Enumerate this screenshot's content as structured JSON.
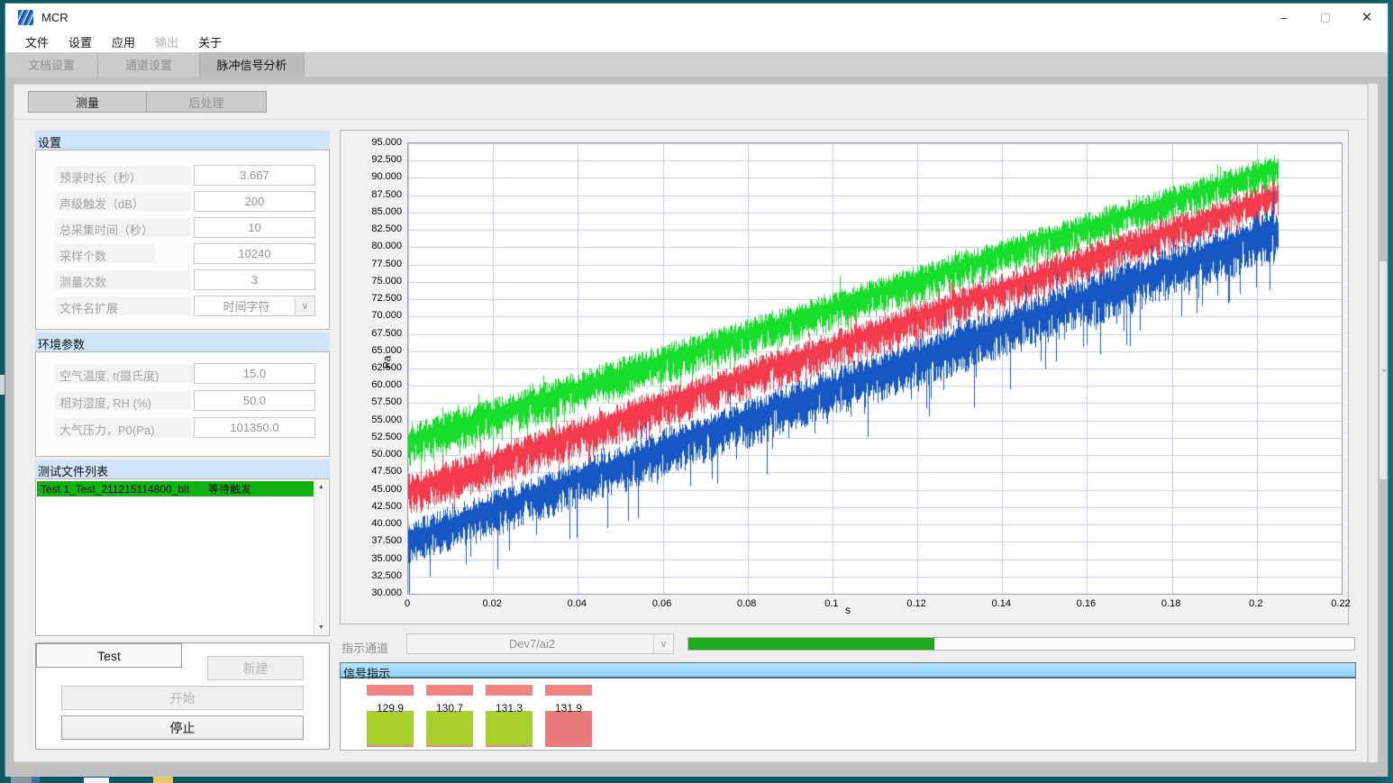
{
  "window": {
    "title": "MCR"
  },
  "window_controls": {
    "minimize": "–",
    "maximize": "▢",
    "close": "✕"
  },
  "menu": {
    "items": [
      {
        "label": "文件",
        "enabled": true
      },
      {
        "label": "设置",
        "enabled": true
      },
      {
        "label": "应用",
        "enabled": true
      },
      {
        "label": "输出",
        "enabled": false
      },
      {
        "label": "关于",
        "enabled": true
      }
    ]
  },
  "tabs": [
    {
      "label": "文档设置",
      "active": false
    },
    {
      "label": "通道设置",
      "active": false
    },
    {
      "label": "脉冲信号分析",
      "active": true
    }
  ],
  "subtabs": [
    {
      "label": "测量",
      "active": true
    },
    {
      "label": "后处理",
      "active": false
    }
  ],
  "settings": {
    "header": "设置",
    "fields": [
      {
        "label": "预录时长（秒）",
        "value": "3.667",
        "type": "input"
      },
      {
        "label": "声级触发（dB）",
        "value": "200",
        "type": "input"
      },
      {
        "label": "总采集时间（秒）",
        "value": "10",
        "type": "input"
      },
      {
        "label": "采样个数",
        "value": "10240",
        "type": "input"
      },
      {
        "label": "测量次数",
        "value": "3",
        "type": "input"
      },
      {
        "label": "文件名扩展",
        "value": "时间字符",
        "type": "dropdown"
      }
    ]
  },
  "environment": {
    "header": "环境参数",
    "fields": [
      {
        "label": "空气温度, t(摄氏度)",
        "value": "15.0"
      },
      {
        "label": "相对湿度, RH (%)",
        "value": "50.0"
      },
      {
        "label": "大气压力，P0(Pa)",
        "value": "101350.0"
      }
    ]
  },
  "file_list": {
    "header": "测试文件列表",
    "rows": [
      {
        "name": "Test 1_Test_211215114800_blt",
        "status": "等待触发",
        "row_color": "#12b212"
      }
    ]
  },
  "controls": {
    "test_name": "Test",
    "new_label": "新建",
    "start_label": "开始",
    "stop_label": "停止"
  },
  "indicator_channel": {
    "label": "指示通道",
    "value": "Dev7/ai2",
    "progress_percent": 37,
    "progress_color": "#1eab1e"
  },
  "signal_panel": {
    "header": "信号指示",
    "strip_color": "#ef8282",
    "indicators": [
      {
        "value": "129.9",
        "color": "#a8cf2b"
      },
      {
        "value": "130.7",
        "color": "#a8cf2b"
      },
      {
        "value": "131.3",
        "color": "#a8cf2b"
      },
      {
        "value": "131.9",
        "color": "#ea7a7a"
      }
    ]
  },
  "chart_data": {
    "type": "line",
    "title": "",
    "xlabel": "s",
    "ylabel": "Pa",
    "xlim": [
      0,
      0.22
    ],
    "ylim": [
      30,
      95
    ],
    "grid": true,
    "grid_color": "#c9cae8",
    "x_tick_labels": [
      "0",
      "0.02",
      "0.04",
      "0.06",
      "0.08",
      "0.1",
      "0.12",
      "0.14",
      "0.16",
      "0.18",
      "0.2",
      "0.22"
    ],
    "y_tick_labels": [
      "95.000",
      "92.500",
      "90.000",
      "87.500",
      "85.000",
      "82.500",
      "80.000",
      "77.500",
      "75.000",
      "72.500",
      "70.000",
      "67.500",
      "65.000",
      "62.500",
      "60.000",
      "57.500",
      "55.000",
      "52.500",
      "50.000",
      "47.500",
      "45.000",
      "42.500",
      "40.000",
      "37.500",
      "35.000",
      "32.500",
      "30.000"
    ],
    "series": [
      {
        "name": "green-trace",
        "color": "#17dd2b",
        "x_start": 0,
        "x_end": 0.205,
        "y_start_range": [
          48.8,
          54.3
        ],
        "y_end_range": [
          88.9,
          93.4
        ]
      },
      {
        "name": "red-trace",
        "color": "#f43b4e",
        "x_start": 0,
        "x_end": 0.205,
        "y_start_range": [
          41.5,
          47.0
        ],
        "y_end_range": [
          84.9,
          89.5
        ]
      },
      {
        "name": "blue-trace",
        "color": "#1657c4",
        "x_start": 0,
        "x_end": 0.205,
        "y_start_range": [
          34.3,
          40.2
        ],
        "y_end_range": [
          78.5,
          85.5
        ]
      }
    ]
  }
}
